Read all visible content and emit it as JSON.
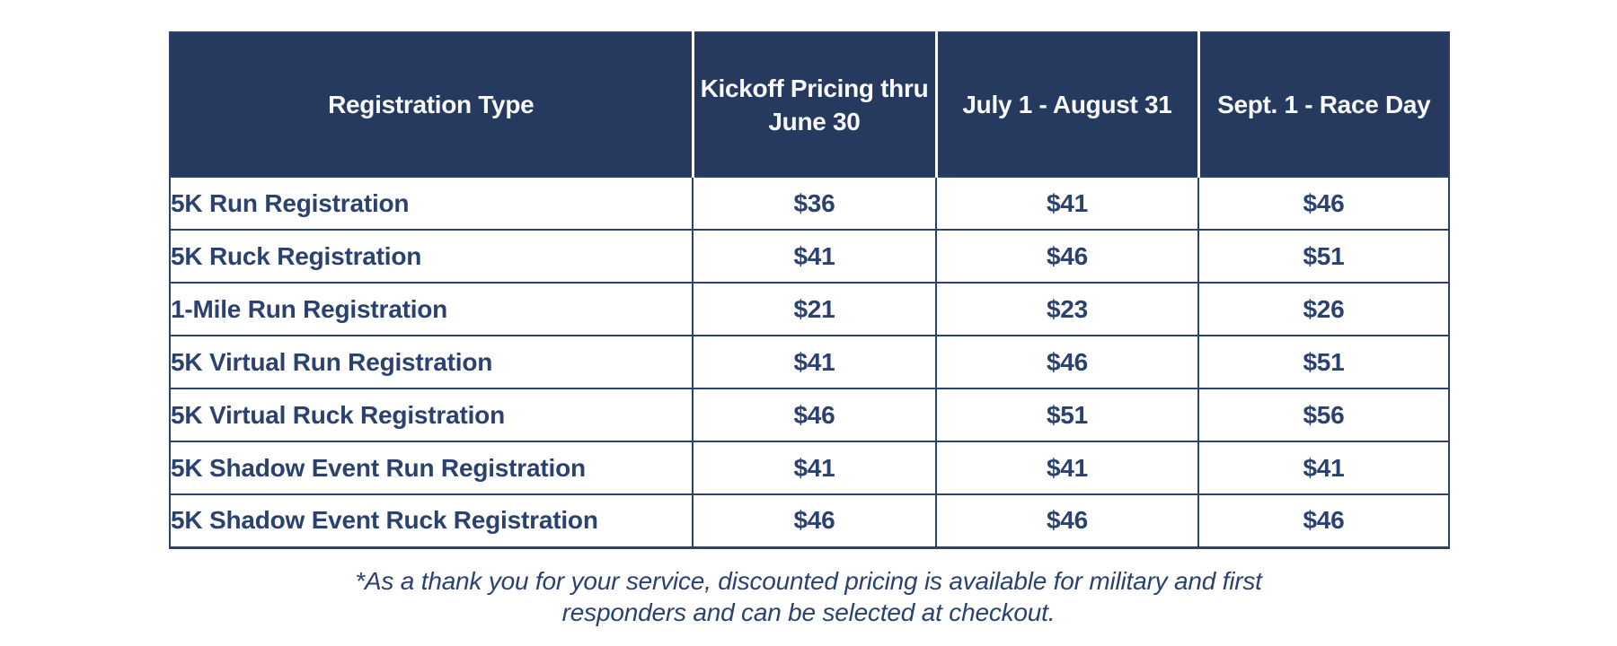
{
  "colors": {
    "header_bg": "#263a5f",
    "ink": "#2b4170",
    "header_text": "#f8f9fb",
    "row_bg": "#ffffff"
  },
  "chart_data": {
    "type": "table",
    "columns": [
      {
        "id": "registration-type",
        "label": "Registration Type"
      },
      {
        "id": "kickoff-pricing",
        "label": "Kickoff Pricing thru\nJune 30"
      },
      {
        "id": "july-august",
        "label": "July 1 - August 31"
      },
      {
        "id": "sept-race-day",
        "label": "Sept. 1 - Race Day"
      }
    ],
    "rows": [
      {
        "type": "5K Run Registration",
        "prices": [
          "$36",
          "$41",
          "$46"
        ]
      },
      {
        "type": "5K Ruck Registration",
        "prices": [
          "$41",
          "$46",
          "$51"
        ]
      },
      {
        "type": "1-Mile Run Registration",
        "prices": [
          "$21",
          "$23",
          "$26"
        ]
      },
      {
        "type": "5K Virtual Run Registration",
        "prices": [
          "$41",
          "$46",
          "$51"
        ]
      },
      {
        "type": "5K Virtual Ruck Registration",
        "prices": [
          "$46",
          "$51",
          "$56"
        ]
      },
      {
        "type": "5K Shadow Event Run Registration",
        "prices": [
          "$41",
          "$41",
          "$41"
        ]
      },
      {
        "type": "5K Shadow Event Ruck Registration",
        "prices": [
          "$46",
          "$46",
          "$46"
        ]
      }
    ]
  },
  "footnote": {
    "lines": [
      "*As a thank you for your service, discounted pricing is available for military and first",
      "responders and can be selected at checkout."
    ]
  }
}
